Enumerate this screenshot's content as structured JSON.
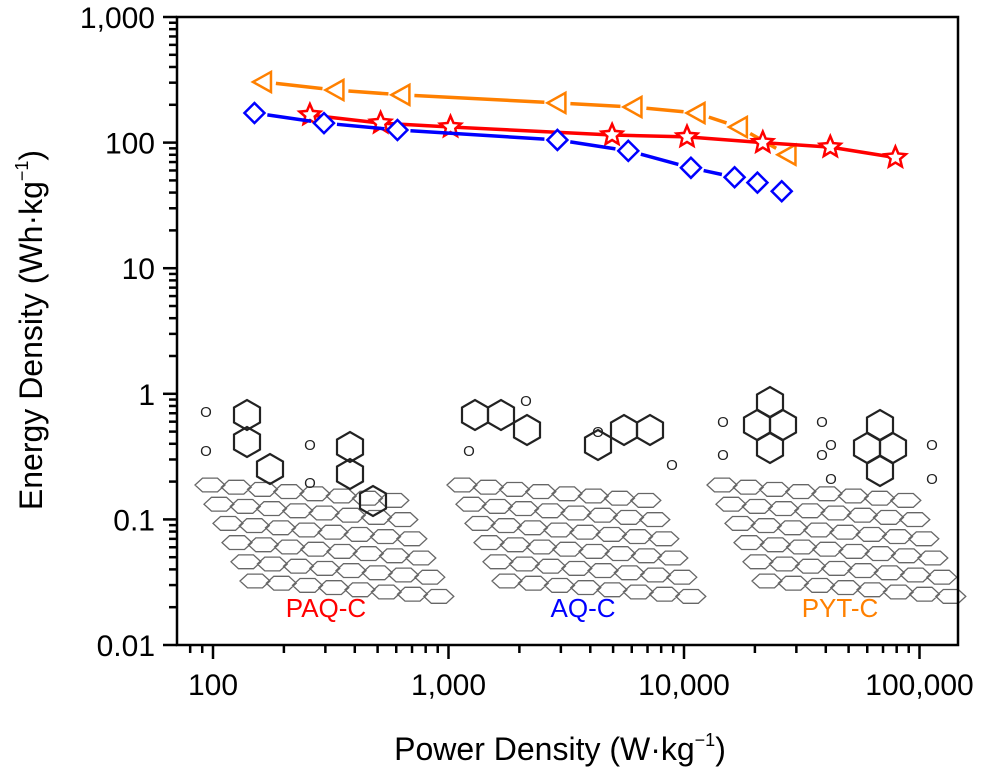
{
  "chart_data": {
    "type": "line",
    "title": "",
    "xlabel": "Power Density (W·kg",
    "xlabel_sup": "−1",
    "xlabel_close": ")",
    "ylabel": "Energy Density (Wh·kg",
    "ylabel_sup": "−1",
    "ylabel_close": ")",
    "xscale": "log",
    "yscale": "log",
    "xlim": [
      70,
      160000
    ],
    "ylim": [
      0.01,
      1000
    ],
    "grid": false,
    "legend": "none",
    "x_ticks": [
      {
        "value": 100,
        "label": "100"
      },
      {
        "value": 1000,
        "label": "1,000"
      },
      {
        "value": 10000,
        "label": "10,000"
      },
      {
        "value": 100000,
        "label": "100,000"
      }
    ],
    "y_ticks": [
      {
        "value": 0.01,
        "label": "0.01"
      },
      {
        "value": 0.1,
        "label": "0.1"
      },
      {
        "value": 1,
        "label": "1"
      },
      {
        "value": 10,
        "label": "10"
      },
      {
        "value": 100,
        "label": "100"
      },
      {
        "value": 1000,
        "label": "1,000"
      }
    ],
    "series": [
      {
        "name": "PYT-C",
        "color": "#ff8000",
        "marker": "triangle-left",
        "points": [
          [
            163,
            304
          ],
          [
            331,
            262
          ],
          [
            631,
            240
          ],
          [
            2900,
            207
          ],
          [
            6100,
            192
          ],
          [
            11300,
            172
          ],
          [
            17100,
            133
          ],
          [
            27500,
            80
          ]
        ]
      },
      {
        "name": "PAQ-C",
        "color": "#ff0000",
        "marker": "star",
        "points": [
          [
            258,
            166
          ],
          [
            515,
            143
          ],
          [
            1020,
            133
          ],
          [
            4950,
            115
          ],
          [
            10300,
            111
          ],
          [
            21600,
            100
          ],
          [
            41800,
            92
          ],
          [
            79000,
            76
          ]
        ]
      },
      {
        "name": "AQ-C",
        "color": "#0000ff",
        "marker": "diamond",
        "points": [
          [
            150,
            172
          ],
          [
            296,
            143
          ],
          [
            607,
            126
          ],
          [
            2900,
            105
          ],
          [
            5800,
            86
          ],
          [
            10700,
            63
          ],
          [
            16400,
            53
          ],
          [
            20500,
            48
          ],
          [
            26000,
            41
          ]
        ]
      }
    ],
    "annotations": [
      {
        "text": "PAQ-C",
        "color": "#ff0000",
        "structure": "phenanthrenequinone on graphene"
      },
      {
        "text": "AQ-C",
        "color": "#0000ff",
        "structure": "anthraquinone on graphene"
      },
      {
        "text": "PYT-C",
        "color": "#ff8000",
        "structure": "pyrene-tetraone on graphene"
      }
    ]
  }
}
